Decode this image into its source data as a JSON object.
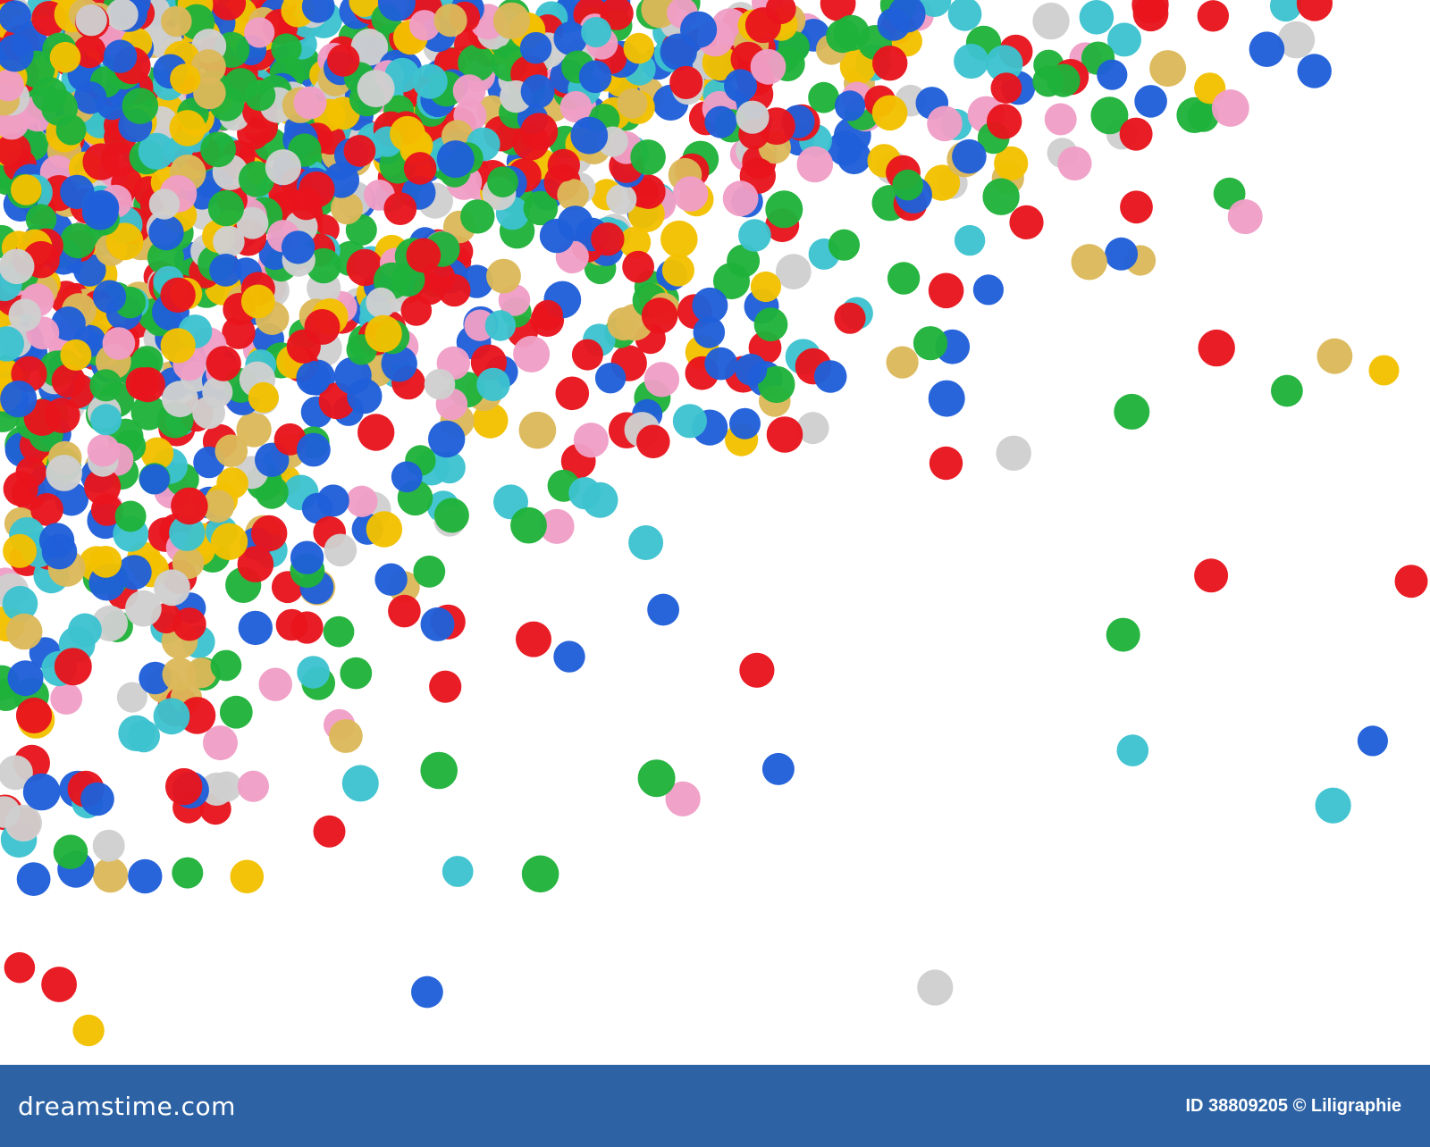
{
  "photo": {
    "subject": "",
    "confetti_colors": {
      "red": "#e8141c",
      "blue": "#1f5fd9",
      "green": "#1fb23a",
      "yellow": "#f2c100",
      "gold": "#dcb85a",
      "cyan": "#3cc3cf",
      "pink": "#ef9ec6",
      "silver": "#cfcfcf"
    },
    "background_color": "#ffffff"
  },
  "footer": {
    "background_color": "#2d63a5",
    "brand_text": "dreamstime.com",
    "id_text": "ID 38809205",
    "copyright_symbol": "©",
    "author": "Liligraphie"
  }
}
